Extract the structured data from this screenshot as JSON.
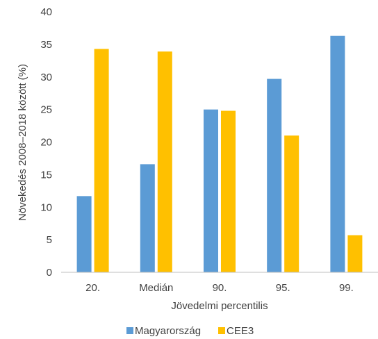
{
  "chart_data": {
    "type": "bar",
    "title": "",
    "xlabel": "Jövedelmi percentilis",
    "ylabel": "Növekedés 2008–2018 között (%)",
    "categories": [
      "20.",
      "Medián",
      "90.",
      "95.",
      "99."
    ],
    "series": [
      {
        "name": "Magyarország",
        "color": "#5B9BD5",
        "values": [
          11.7,
          16.6,
          25.0,
          29.7,
          36.3
        ]
      },
      {
        "name": "CEE3",
        "color": "#FFC000",
        "values": [
          34.3,
          33.9,
          24.8,
          21.0,
          5.7
        ]
      }
    ],
    "ylim": [
      0,
      40
    ],
    "yticks": [
      0,
      5,
      10,
      15,
      20,
      25,
      30,
      35,
      40
    ],
    "grid": false,
    "legend": "bottom"
  }
}
